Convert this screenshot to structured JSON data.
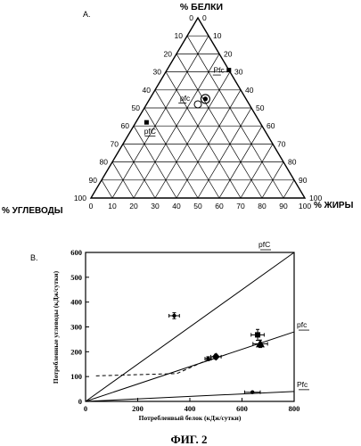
{
  "figure": {
    "caption": "ФИГ. 2"
  },
  "chart_data": [
    {
      "type": "ternary",
      "panel_label": "A.",
      "axes": {
        "top": {
          "label": "% БЕЛКИ"
        },
        "left": {
          "label": "% УГЛЕВОДЫ"
        },
        "right": {
          "label": "% ЖИРЫ"
        }
      },
      "tick_labels": [
        "0",
        "10",
        "20",
        "30",
        "40",
        "50",
        "60",
        "70",
        "80",
        "90",
        "100"
      ],
      "grid": true,
      "points": [
        {
          "name": "Pfc",
          "label": "Pfc",
          "protein": 71,
          "fat": 29,
          "carb": 0,
          "marker": "square",
          "label_side": "left"
        },
        {
          "name": "target-circle",
          "label": "",
          "protein": 55,
          "fat": 26,
          "carb": 19,
          "marker": "circle-target"
        },
        {
          "name": "open-circle",
          "label": "",
          "protein": 52,
          "fat": 24,
          "carb": 24,
          "marker": "open-circle"
        },
        {
          "name": "pfc",
          "label": "pfc",
          "protein": 53,
          "fat": 24,
          "carb": 23,
          "marker": "none",
          "label_side": "left"
        },
        {
          "name": "pfC",
          "label": "pfC",
          "protein": 42,
          "fat": 5,
          "carb": 53,
          "marker": "square",
          "label_side": "below"
        }
      ]
    },
    {
      "type": "line",
      "panel_label": "B.",
      "xlabel": "Потребленвый белок (кДж/сутки)",
      "ylabel": "Потребленные углеводы (кДж/сутки)",
      "xlim": [
        0,
        800
      ],
      "ylim": [
        0,
        600
      ],
      "xticks": [
        0,
        200,
        400,
        600,
        800
      ],
      "yticks": [
        0,
        100,
        200,
        300,
        400,
        500,
        600
      ],
      "series": [
        {
          "name": "pfC",
          "type": "line",
          "x": [
            0,
            800
          ],
          "y": [
            0,
            600
          ]
        },
        {
          "name": "pfc",
          "type": "line",
          "x": [
            0,
            800
          ],
          "y": [
            0,
            280
          ]
        },
        {
          "name": "Pfc",
          "type": "line",
          "x": [
            0,
            800
          ],
          "y": [
            0,
            40
          ]
        },
        {
          "name": "dashed",
          "type": "dashed",
          "x": [
            40,
            350,
            470
          ],
          "y": [
            103,
            112,
            168
          ]
        }
      ],
      "points": [
        {
          "x": 340,
          "y": 345,
          "xerr": 20,
          "yerr": 12,
          "marker": "circle"
        },
        {
          "x": 500,
          "y": 180,
          "xerr": 20,
          "yerr": 10,
          "marker": "diamond"
        },
        {
          "x": 470,
          "y": 172,
          "xerr": 12,
          "yerr": 8,
          "marker": "circle"
        },
        {
          "x": 660,
          "y": 268,
          "xerr": 25,
          "yerr": 22,
          "marker": "square"
        },
        {
          "x": 670,
          "y": 232,
          "xerr": 28,
          "yerr": 15,
          "marker": "triangle"
        },
        {
          "x": 640,
          "y": 37,
          "xerr": 30,
          "yerr": 0,
          "marker": "circle"
        }
      ]
    }
  ]
}
